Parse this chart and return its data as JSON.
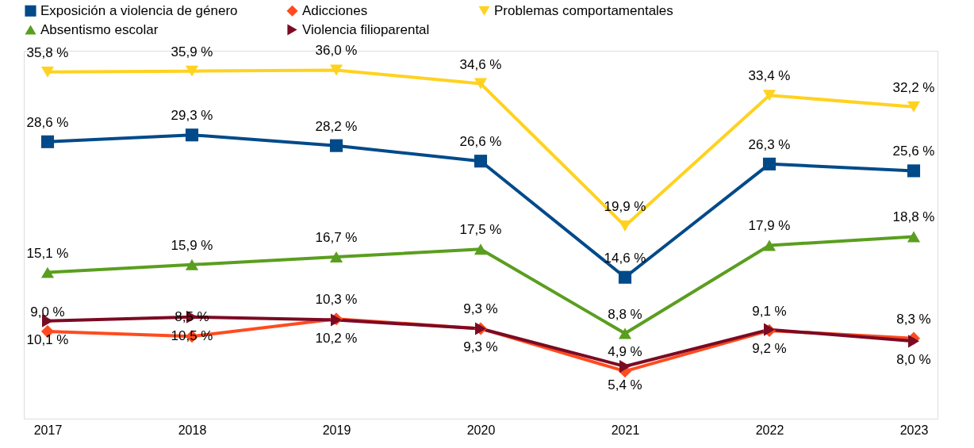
{
  "chart_data": {
    "type": "line",
    "categories": [
      "2017",
      "2018",
      "2019",
      "2020",
      "2021",
      "2022",
      "2023"
    ],
    "ylim": [
      0,
      38
    ],
    "tick_labels": "x",
    "grid": false,
    "legend": "top",
    "line_style": "solid",
    "series": [
      {
        "name": "Exposición a violencia de género",
        "color": "#004a89",
        "marker": "square",
        "values": [
          28.6,
          29.3,
          28.2,
          26.6,
          14.6,
          26.3,
          25.6
        ],
        "value_labels": [
          "28,6 %",
          "29,3 %",
          "28,2 %",
          "26,6 %",
          "14,6 %",
          "26,3 %",
          "25,6 %"
        ]
      },
      {
        "name": "Adicciones",
        "color": "#ff4b1f",
        "marker": "diamond",
        "values": [
          9.0,
          8.5,
          10.3,
          9.3,
          4.9,
          9.1,
          8.3
        ],
        "value_labels": [
          "9,0 %",
          "8,5 %",
          "10,3 %",
          "9,3 %",
          "4,9 %",
          "9,1 %",
          "8,3 %"
        ]
      },
      {
        "name": "Problemas comportamentales",
        "color": "#ffd21f",
        "marker": "triangle-down",
        "values": [
          35.8,
          35.9,
          36.0,
          34.6,
          19.9,
          33.4,
          32.2
        ],
        "value_labels": [
          "35,8 %",
          "35,9 %",
          "36,0 %",
          "34,6 %",
          "19,9 %",
          "33,4 %",
          "32,2 %"
        ]
      },
      {
        "name": "Absentismo escolar",
        "color": "#5a9e1f",
        "marker": "triangle-up",
        "values": [
          15.1,
          15.9,
          16.7,
          17.5,
          8.8,
          17.9,
          18.8
        ],
        "value_labels": [
          "15,1 %",
          "15,9 %",
          "16,7 %",
          "17,5 %",
          "8,8 %",
          "17,9 %",
          "18,8 %"
        ]
      },
      {
        "name": "Violencia filioparental",
        "color": "#7b0a23",
        "marker": "triangle-right",
        "values": [
          10.1,
          10.5,
          10.2,
          9.3,
          5.4,
          9.2,
          8.0
        ],
        "value_labels": [
          "10,1 %",
          "10,5 %",
          "10,2 %",
          "9,3 %",
          "5,4 %",
          "9,2 %",
          "8,0 %"
        ]
      }
    ]
  }
}
